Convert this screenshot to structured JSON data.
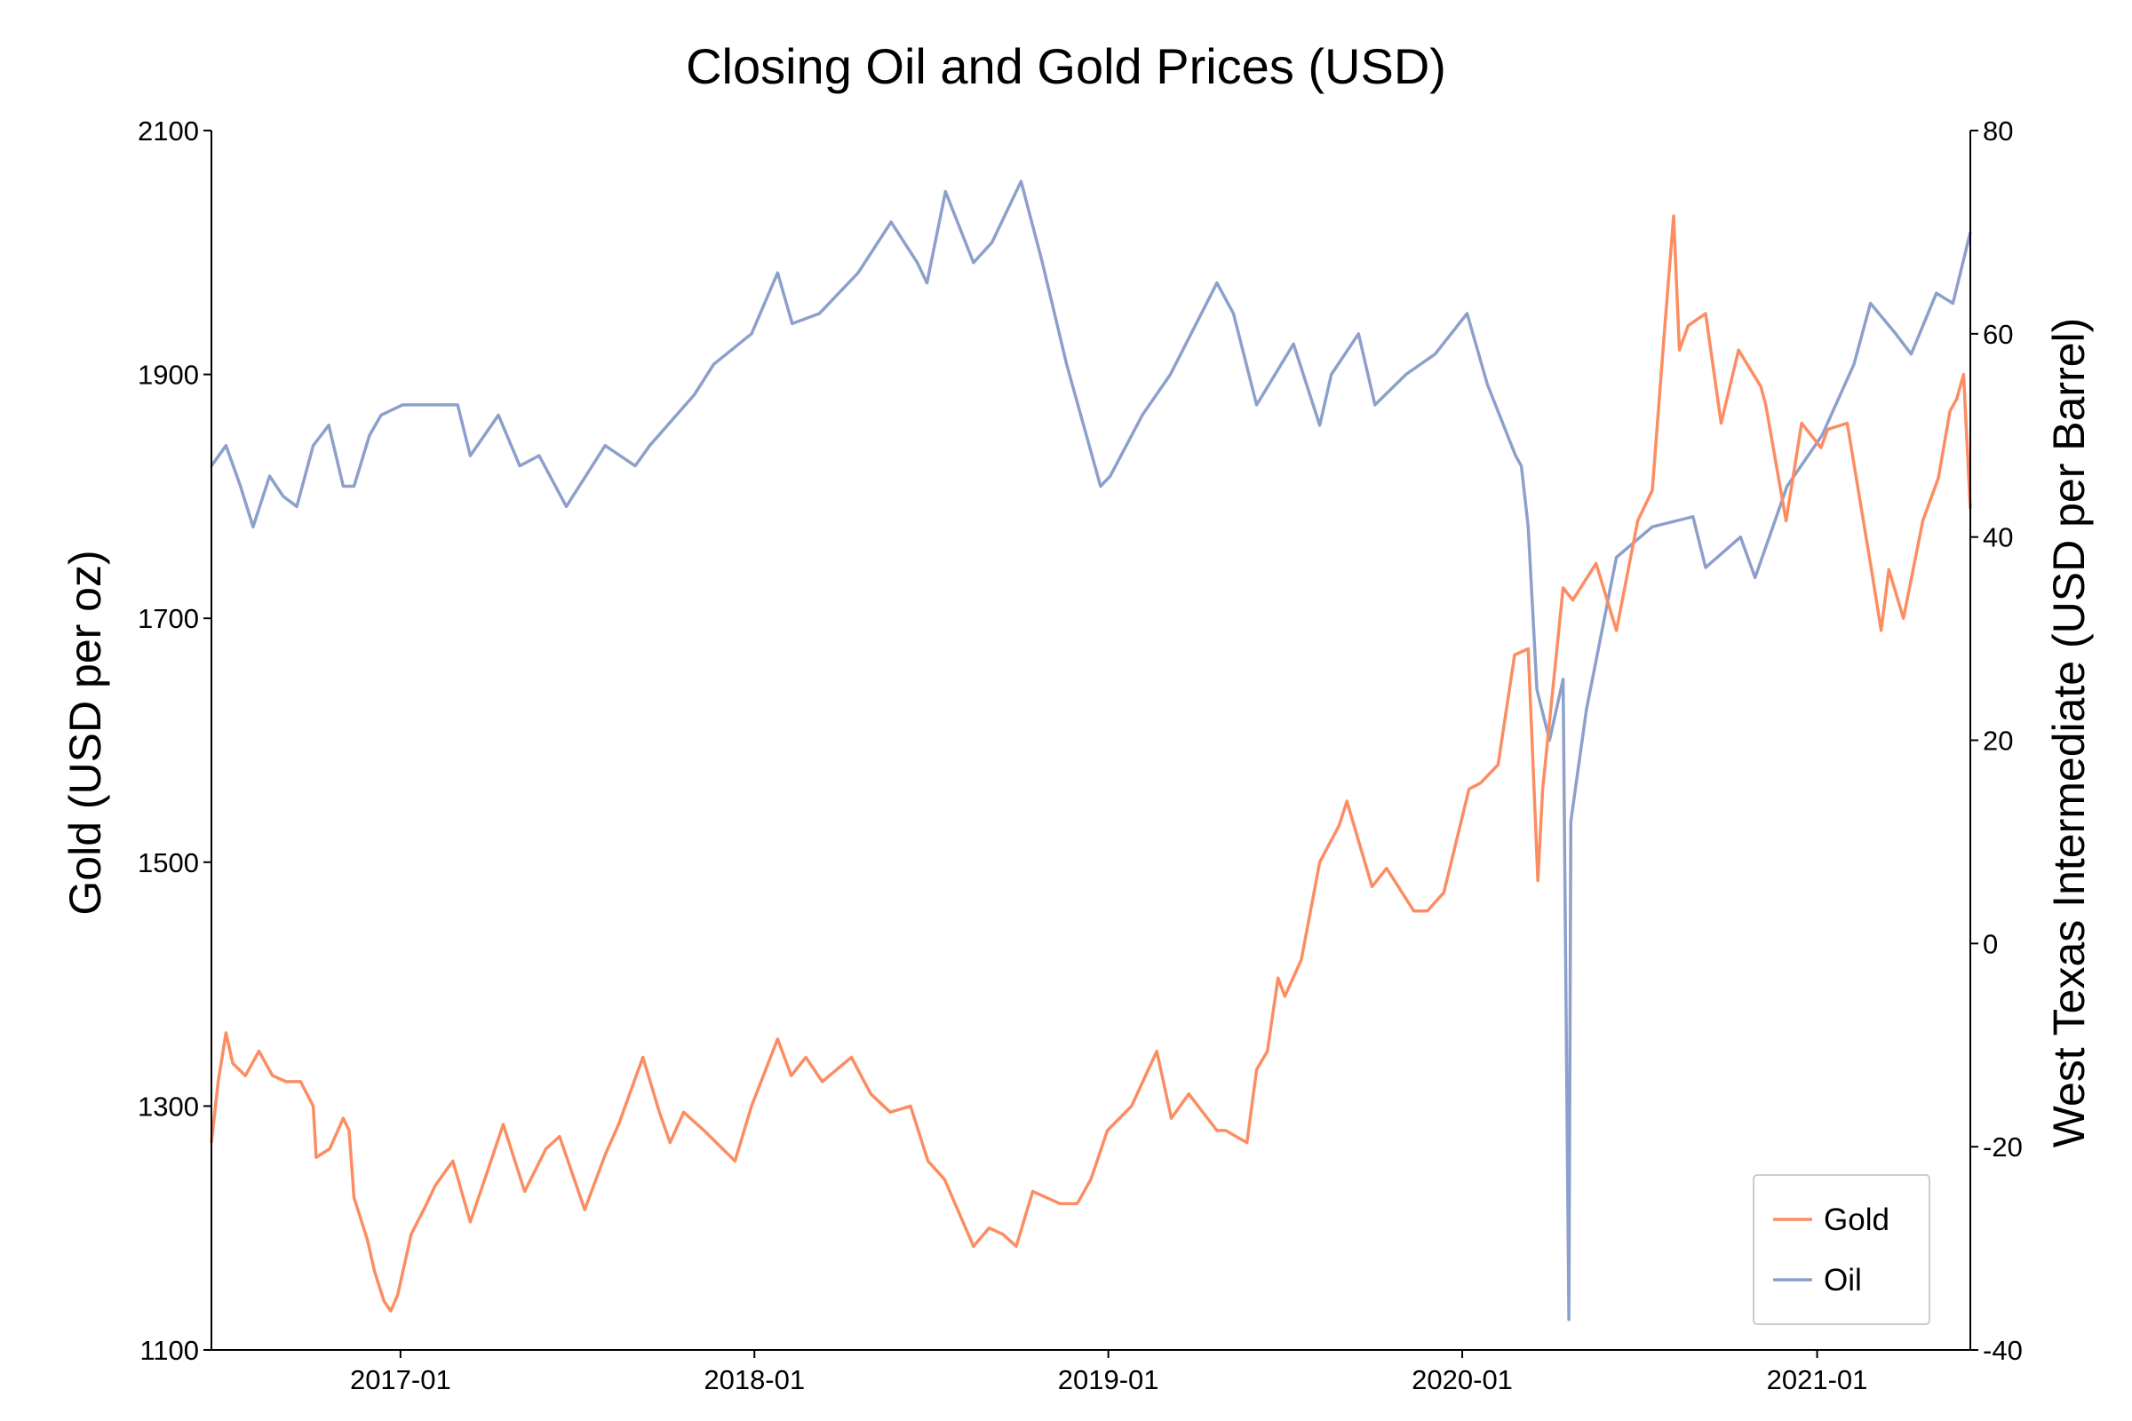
{
  "chart_data": {
    "type": "line",
    "title": "Closing Oil and Gold Prices (USD)",
    "ylabel_left": "Gold (USD per oz)",
    "ylabel_right": "West Texas Intermediate (USD per Barrel)",
    "ylim_left": [
      1100,
      2100
    ],
    "ylim_right": [
      -40,
      80
    ],
    "yticks_left": [
      1100,
      1300,
      1500,
      1700,
      1900,
      2100
    ],
    "yticks_right": [
      -40,
      -20,
      0,
      20,
      40,
      60,
      80
    ],
    "xlim": [
      "2016-06-20",
      "2021-06-08"
    ],
    "xticks": [
      "2017-01",
      "2018-01",
      "2019-01",
      "2020-01",
      "2021-01"
    ],
    "grid": false,
    "legend_position": "lower-right",
    "colors": {
      "gold": "#fc8d62",
      "oil": "#8da0cb"
    },
    "series": [
      {
        "name": "Gold",
        "axis": "left",
        "x": [
          "2016-06-20",
          "2016-06-27",
          "2016-07-05",
          "2016-07-12",
          "2016-07-25",
          "2016-08-08",
          "2016-08-22",
          "2016-09-05",
          "2016-09-20",
          "2016-10-03",
          "2016-10-06",
          "2016-10-20",
          "2016-11-03",
          "2016-11-09",
          "2016-11-14",
          "2016-11-28",
          "2016-12-05",
          "2016-12-15",
          "2016-12-22",
          "2016-12-29",
          "2017-01-12",
          "2017-01-25",
          "2017-02-06",
          "2017-02-24",
          "2017-03-14",
          "2017-03-31",
          "2017-04-17",
          "2017-05-09",
          "2017-05-31",
          "2017-06-14",
          "2017-07-10",
          "2017-07-31",
          "2017-08-14",
          "2017-09-08",
          "2017-09-25",
          "2017-10-06",
          "2017-10-20",
          "2017-11-10",
          "2017-12-12",
          "2017-12-29",
          "2018-01-25",
          "2018-02-08",
          "2018-02-23",
          "2018-03-12",
          "2018-04-11",
          "2018-05-01",
          "2018-05-21",
          "2018-06-11",
          "2018-06-29",
          "2018-07-16",
          "2018-08-15",
          "2018-08-31",
          "2018-09-14",
          "2018-09-28",
          "2018-10-15",
          "2018-11-12",
          "2018-11-30",
          "2018-12-14",
          "2018-12-31",
          "2019-01-25",
          "2019-02-20",
          "2019-03-07",
          "2019-03-25",
          "2019-04-23",
          "2019-05-02",
          "2019-05-24",
          "2019-06-03",
          "2019-06-14",
          "2019-06-25",
          "2019-07-02",
          "2019-07-19",
          "2019-08-07",
          "2019-08-27",
          "2019-09-04",
          "2019-09-30",
          "2019-10-15",
          "2019-11-12",
          "2019-11-26",
          "2019-12-13",
          "2020-01-08",
          "2020-01-20",
          "2020-02-07",
          "2020-02-24",
          "2020-03-09",
          "2020-03-19",
          "2020-03-24",
          "2020-04-14",
          "2020-04-24",
          "2020-05-18",
          "2020-06-08",
          "2020-06-30",
          "2020-07-15",
          "2020-07-27",
          "2020-08-06",
          "2020-08-12",
          "2020-08-21",
          "2020-09-08",
          "2020-09-24",
          "2020-10-12",
          "2020-11-04",
          "2020-11-09",
          "2020-11-30",
          "2020-12-16",
          "2021-01-05",
          "2021-01-12",
          "2021-02-01",
          "2021-02-26",
          "2021-03-08",
          "2021-03-16",
          "2021-03-31",
          "2021-04-20",
          "2021-05-06",
          "2021-05-18",
          "2021-05-25",
          "2021-06-01",
          "2021-06-08"
        ],
        "values": [
          1270,
          1320,
          1360,
          1335,
          1325,
          1345,
          1325,
          1320,
          1320,
          1300,
          1258,
          1265,
          1290,
          1280,
          1225,
          1190,
          1165,
          1140,
          1132,
          1145,
          1195,
          1215,
          1235,
          1255,
          1205,
          1245,
          1285,
          1230,
          1265,
          1275,
          1215,
          1260,
          1285,
          1340,
          1295,
          1270,
          1295,
          1280,
          1255,
          1300,
          1355,
          1325,
          1340,
          1320,
          1340,
          1310,
          1295,
          1300,
          1255,
          1240,
          1185,
          1200,
          1195,
          1185,
          1230,
          1220,
          1220,
          1240,
          1280,
          1300,
          1345,
          1290,
          1310,
          1280,
          1280,
          1270,
          1330,
          1345,
          1405,
          1390,
          1420,
          1500,
          1530,
          1550,
          1480,
          1495,
          1460,
          1460,
          1475,
          1560,
          1565,
          1580,
          1670,
          1675,
          1485,
          1560,
          1725,
          1715,
          1745,
          1690,
          1780,
          1805,
          1930,
          2030,
          1920,
          1940,
          1950,
          1860,
          1920,
          1890,
          1875,
          1780,
          1860,
          1840,
          1855,
          1860,
          1740,
          1690,
          1740,
          1700,
          1780,
          1815,
          1870,
          1880,
          1900,
          1790
        ]
      },
      {
        "name": "Oil",
        "axis": "right",
        "x": [
          "2016-06-20",
          "2016-07-05",
          "2016-07-20",
          "2016-08-02",
          "2016-08-19",
          "2016-09-02",
          "2016-09-16",
          "2016-10-03",
          "2016-10-19",
          "2016-11-03",
          "2016-11-14",
          "2016-11-30",
          "2016-12-12",
          "2017-01-03",
          "2017-02-15",
          "2017-03-01",
          "2017-03-14",
          "2017-04-12",
          "2017-05-04",
          "2017-05-24",
          "2017-06-21",
          "2017-07-31",
          "2017-08-31",
          "2017-09-15",
          "2017-10-31",
          "2017-11-20",
          "2017-12-29",
          "2018-01-25",
          "2018-02-09",
          "2018-03-09",
          "2018-04-18",
          "2018-05-22",
          "2018-06-18",
          "2018-06-28",
          "2018-07-17",
          "2018-08-15",
          "2018-09-03",
          "2018-10-03",
          "2018-10-25",
          "2018-11-19",
          "2018-12-24",
          "2019-01-03",
          "2019-02-05",
          "2019-03-06",
          "2019-04-23",
          "2019-05-10",
          "2019-06-03",
          "2019-07-11",
          "2019-08-07",
          "2019-08-19",
          "2019-09-16",
          "2019-10-03",
          "2019-11-04",
          "2019-12-04",
          "2020-01-06",
          "2020-01-27",
          "2020-02-25",
          "2020-03-02",
          "2020-03-09",
          "2020-03-18",
          "2020-03-31",
          "2020-04-14",
          "2020-04-20",
          "2020-04-22",
          "2020-05-08",
          "2020-06-08",
          "2020-07-15",
          "2020-08-26",
          "2020-09-08",
          "2020-10-14",
          "2020-10-29",
          "2020-12-01",
          "2021-01-06",
          "2021-02-08",
          "2021-02-25",
          "2021-03-23",
          "2021-04-08",
          "2021-05-04",
          "2021-05-21",
          "2021-06-08"
        ],
        "values": [
          47,
          49,
          45,
          41,
          46,
          44,
          43,
          49,
          51,
          45,
          45,
          50,
          52,
          53,
          53,
          53,
          48,
          52,
          47,
          48,
          43,
          49,
          47,
          49,
          54,
          57,
          60,
          66,
          61,
          62,
          66,
          71,
          67,
          65,
          74,
          67,
          69,
          75,
          67,
          57,
          45,
          46,
          52,
          56,
          65,
          62,
          53,
          59,
          51,
          56,
          60,
          53,
          56,
          58,
          62,
          55,
          48,
          47,
          41,
          25,
          20,
          26,
          -37,
          12,
          23,
          38,
          41,
          42,
          37,
          40,
          36,
          45,
          50,
          57,
          63,
          60,
          58,
          64,
          63,
          70
        ]
      }
    ]
  }
}
